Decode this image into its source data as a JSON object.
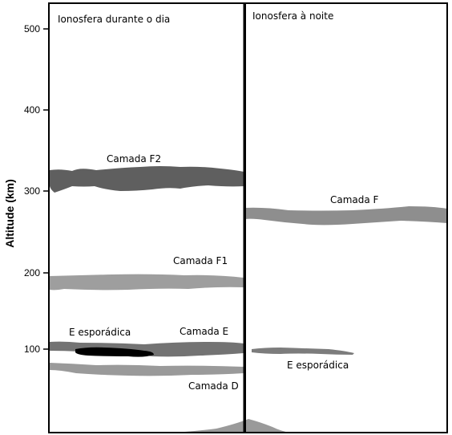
{
  "axis": {
    "label": "Altitude (km)",
    "ticks": [
      "500",
      "400",
      "300",
      "200",
      "100"
    ]
  },
  "panels": {
    "day": {
      "title": "Ionosfera durante o dia"
    },
    "night": {
      "title": "Ionosfera à noite"
    }
  },
  "layers": {
    "day": {
      "f2": {
        "label": "Camada F2",
        "color": "#5f5f5f"
      },
      "f1": {
        "label": "Camada F1",
        "color": "#9e9e9e"
      },
      "e": {
        "label": "Camada E",
        "color": "#737373"
      },
      "e_sporadic": {
        "label": "E esporádica",
        "color": "#000000"
      },
      "d": {
        "label": "Camada D",
        "color": "#9a9a9a"
      }
    },
    "night": {
      "f": {
        "label": "Camada F",
        "color": "#8e8e8e"
      },
      "e_sporadic": {
        "label": "E esporádica",
        "color": "#7c7c7c"
      }
    }
  }
}
